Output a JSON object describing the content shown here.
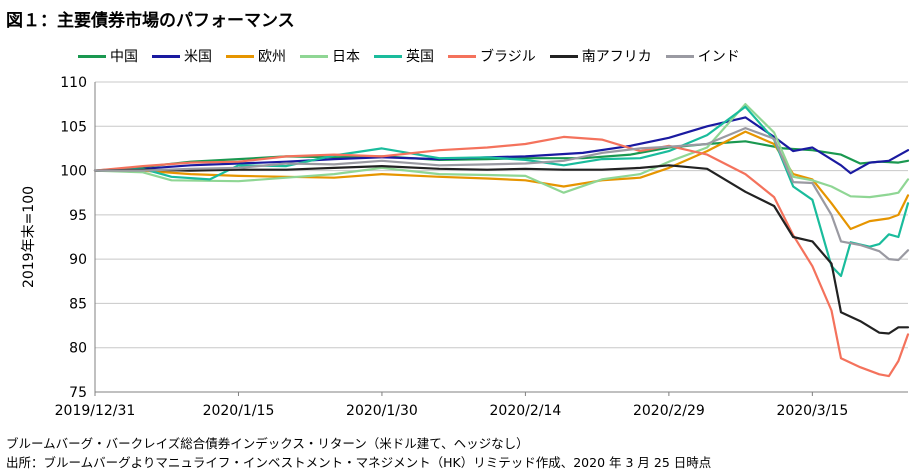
{
  "title": "図１：主要債券市場のパフォーマンス",
  "notes": {
    "line1": "ブルームバーグ・バークレイズ総合債券インデックス・リターン（米ドル建て、ヘッジなし）",
    "line2": "出所：ブルームバーグよりマニュライフ・インベストメント・マネジメント（HK）リミテッド作成、2020 年 3 月 25 日時点"
  },
  "chart_data": {
    "type": "line",
    "title": "図１：主要債券市場のパフォーマンス",
    "xlabel": "",
    "ylabel": "2019年末=100",
    "ylim": [
      75,
      110
    ],
    "yticks": [
      75,
      80,
      85,
      90,
      95,
      100,
      105,
      110
    ],
    "x_ticks": [
      "2019/12/31",
      "2020/1/15",
      "2020/1/30",
      "2020/2/14",
      "2020/2/29",
      "2020/3/15"
    ],
    "x_start": "2019-12-31",
    "x_end": "2020-03-25",
    "grid": "horizontal",
    "legend_position": "top",
    "series": [
      {
        "name": "中国",
        "color": "#1a9850",
        "points": [
          [
            "2019-12-31",
            100
          ],
          [
            "2020-01-05",
            100.4
          ],
          [
            "2020-01-10",
            101.0
          ],
          [
            "2020-01-15",
            101.3
          ],
          [
            "2020-01-20",
            101.6
          ],
          [
            "2020-01-25",
            101.5
          ],
          [
            "2020-01-30",
            101.6
          ],
          [
            "2020-02-05",
            101.2
          ],
          [
            "2020-02-10",
            101.3
          ],
          [
            "2020-02-14",
            101.4
          ],
          [
            "2020-02-20",
            101.4
          ],
          [
            "2020-02-25",
            101.8
          ],
          [
            "2020-02-29",
            102.6
          ],
          [
            "2020-03-04",
            103.0
          ],
          [
            "2020-03-08",
            103.3
          ],
          [
            "2020-03-12",
            102.5
          ],
          [
            "2020-03-15",
            102.3
          ],
          [
            "2020-03-18",
            101.8
          ],
          [
            "2020-03-20",
            100.8
          ],
          [
            "2020-03-22",
            101.0
          ],
          [
            "2020-03-24",
            100.9
          ],
          [
            "2020-03-25",
            101.1
          ]
        ]
      },
      {
        "name": "米国",
        "color": "#1a1aa0",
        "points": [
          [
            "2019-12-31",
            100
          ],
          [
            "2020-01-05",
            100.2
          ],
          [
            "2020-01-10",
            100.6
          ],
          [
            "2020-01-15",
            100.8
          ],
          [
            "2020-01-20",
            101.0
          ],
          [
            "2020-01-25",
            101.3
          ],
          [
            "2020-01-30",
            101.5
          ],
          [
            "2020-02-05",
            101.3
          ],
          [
            "2020-02-10",
            101.5
          ],
          [
            "2020-02-14",
            101.6
          ],
          [
            "2020-02-20",
            102.0
          ],
          [
            "2020-02-25",
            102.8
          ],
          [
            "2020-02-29",
            103.7
          ],
          [
            "2020-03-04",
            105.0
          ],
          [
            "2020-03-08",
            106.0
          ],
          [
            "2020-03-11",
            103.8
          ],
          [
            "2020-03-13",
            102.2
          ],
          [
            "2020-03-15",
            102.6
          ],
          [
            "2020-03-18",
            100.6
          ],
          [
            "2020-03-19",
            99.7
          ],
          [
            "2020-03-21",
            100.9
          ],
          [
            "2020-03-23",
            101.1
          ],
          [
            "2020-03-25",
            102.3
          ]
        ]
      },
      {
        "name": "欧州",
        "color": "#e69500",
        "points": [
          [
            "2019-12-31",
            100
          ],
          [
            "2020-01-05",
            100.0
          ],
          [
            "2020-01-10",
            99.6
          ],
          [
            "2020-01-15",
            99.4
          ],
          [
            "2020-01-20",
            99.3
          ],
          [
            "2020-01-25",
            99.2
          ],
          [
            "2020-01-30",
            99.6
          ],
          [
            "2020-02-05",
            99.3
          ],
          [
            "2020-02-10",
            99.1
          ],
          [
            "2020-02-14",
            98.9
          ],
          [
            "2020-02-18",
            98.2
          ],
          [
            "2020-02-22",
            98.9
          ],
          [
            "2020-02-26",
            99.2
          ],
          [
            "2020-02-29",
            100.3
          ],
          [
            "2020-03-04",
            102.2
          ],
          [
            "2020-03-08",
            104.4
          ],
          [
            "2020-03-11",
            103.0
          ],
          [
            "2020-03-13",
            99.6
          ],
          [
            "2020-03-15",
            99.0
          ],
          [
            "2020-03-17",
            96.3
          ],
          [
            "2020-03-19",
            93.4
          ],
          [
            "2020-03-21",
            94.3
          ],
          [
            "2020-03-23",
            94.6
          ],
          [
            "2020-03-24",
            95.0
          ],
          [
            "2020-03-25",
            97.2
          ]
        ]
      },
      {
        "name": "日本",
        "color": "#8fd694",
        "points": [
          [
            "2019-12-31",
            100
          ],
          [
            "2020-01-05",
            99.8
          ],
          [
            "2020-01-08",
            98.9
          ],
          [
            "2020-01-15",
            98.8
          ],
          [
            "2020-01-20",
            99.2
          ],
          [
            "2020-01-25",
            99.6
          ],
          [
            "2020-01-30",
            100.3
          ],
          [
            "2020-02-05",
            99.6
          ],
          [
            "2020-02-10",
            99.5
          ],
          [
            "2020-02-14",
            99.4
          ],
          [
            "2020-02-18",
            97.5
          ],
          [
            "2020-02-22",
            99.0
          ],
          [
            "2020-02-26",
            99.6
          ],
          [
            "2020-02-29",
            101.0
          ],
          [
            "2020-03-04",
            102.6
          ],
          [
            "2020-03-08",
            107.5
          ],
          [
            "2020-03-11",
            104.3
          ],
          [
            "2020-03-13",
            99.3
          ],
          [
            "2020-03-15",
            98.9
          ],
          [
            "2020-03-17",
            98.2
          ],
          [
            "2020-03-19",
            97.1
          ],
          [
            "2020-03-21",
            97.0
          ],
          [
            "2020-03-23",
            97.3
          ],
          [
            "2020-03-24",
            97.5
          ],
          [
            "2020-03-25",
            99.0
          ]
        ]
      },
      {
        "name": "英国",
        "color": "#1abc9c",
        "points": [
          [
            "2019-12-31",
            100
          ],
          [
            "2020-01-05",
            100.2
          ],
          [
            "2020-01-08",
            99.3
          ],
          [
            "2020-01-12",
            99.0
          ],
          [
            "2020-01-15",
            100.6
          ],
          [
            "2020-01-20",
            100.5
          ],
          [
            "2020-01-25",
            101.7
          ],
          [
            "2020-01-30",
            102.5
          ],
          [
            "2020-02-05",
            101.4
          ],
          [
            "2020-02-10",
            101.5
          ],
          [
            "2020-02-14",
            101.2
          ],
          [
            "2020-02-18",
            100.6
          ],
          [
            "2020-02-22",
            101.3
          ],
          [
            "2020-02-26",
            101.4
          ],
          [
            "2020-02-29",
            102.2
          ],
          [
            "2020-03-04",
            104.0
          ],
          [
            "2020-03-08",
            107.2
          ],
          [
            "2020-03-11",
            103.5
          ],
          [
            "2020-03-13",
            98.2
          ],
          [
            "2020-03-15",
            96.7
          ],
          [
            "2020-03-17",
            89.2
          ],
          [
            "2020-03-18",
            88.1
          ],
          [
            "2020-03-19",
            91.9
          ],
          [
            "2020-03-21",
            91.4
          ],
          [
            "2020-03-22",
            91.7
          ],
          [
            "2020-03-23",
            92.8
          ],
          [
            "2020-03-24",
            92.5
          ],
          [
            "2020-03-25",
            96.3
          ]
        ]
      },
      {
        "name": "ブラジル",
        "color": "#f4725c",
        "points": [
          [
            "2019-12-31",
            100
          ],
          [
            "2020-01-05",
            100.5
          ],
          [
            "2020-01-10",
            100.9
          ],
          [
            "2020-01-15",
            101.0
          ],
          [
            "2020-01-20",
            101.6
          ],
          [
            "2020-01-25",
            101.8
          ],
          [
            "2020-01-30",
            101.6
          ],
          [
            "2020-02-05",
            102.3
          ],
          [
            "2020-02-10",
            102.6
          ],
          [
            "2020-02-14",
            103.0
          ],
          [
            "2020-02-18",
            103.8
          ],
          [
            "2020-02-22",
            103.5
          ],
          [
            "2020-02-26",
            102.2
          ],
          [
            "2020-02-29",
            102.8
          ],
          [
            "2020-03-04",
            101.8
          ],
          [
            "2020-03-08",
            99.6
          ],
          [
            "2020-03-11",
            97.0
          ],
          [
            "2020-03-13",
            92.7
          ],
          [
            "2020-03-15",
            89.2
          ],
          [
            "2020-03-17",
            84.2
          ],
          [
            "2020-03-18",
            78.8
          ],
          [
            "2020-03-20",
            77.8
          ],
          [
            "2020-03-22",
            77.0
          ],
          [
            "2020-03-23",
            76.8
          ],
          [
            "2020-03-24",
            78.5
          ],
          [
            "2020-03-25",
            81.5
          ]
        ]
      },
      {
        "name": "南アフリカ",
        "color": "#222222",
        "points": [
          [
            "2019-12-31",
            100
          ],
          [
            "2020-01-05",
            100.1
          ],
          [
            "2020-01-10",
            100.0
          ],
          [
            "2020-01-15",
            100.1
          ],
          [
            "2020-01-20",
            100.1
          ],
          [
            "2020-01-25",
            100.3
          ],
          [
            "2020-01-30",
            100.5
          ],
          [
            "2020-02-05",
            100.2
          ],
          [
            "2020-02-10",
            100.1
          ],
          [
            "2020-02-14",
            100.2
          ],
          [
            "2020-02-18",
            100.1
          ],
          [
            "2020-02-22",
            100.1
          ],
          [
            "2020-02-26",
            100.3
          ],
          [
            "2020-02-29",
            100.6
          ],
          [
            "2020-03-04",
            100.2
          ],
          [
            "2020-03-08",
            97.6
          ],
          [
            "2020-03-11",
            96.0
          ],
          [
            "2020-03-13",
            92.5
          ],
          [
            "2020-03-15",
            92.0
          ],
          [
            "2020-03-17",
            89.5
          ],
          [
            "2020-03-18",
            84.0
          ],
          [
            "2020-03-20",
            83.0
          ],
          [
            "2020-03-22",
            81.7
          ],
          [
            "2020-03-23",
            81.6
          ],
          [
            "2020-03-24",
            82.3
          ],
          [
            "2020-03-25",
            82.3
          ]
        ]
      },
      {
        "name": "インド",
        "color": "#9a9aa2",
        "points": [
          [
            "2019-12-31",
            100
          ],
          [
            "2020-01-05",
            100.0
          ],
          [
            "2020-01-10",
            100.2
          ],
          [
            "2020-01-15",
            100.3
          ],
          [
            "2020-01-20",
            100.8
          ],
          [
            "2020-01-25",
            100.7
          ],
          [
            "2020-01-30",
            101.1
          ],
          [
            "2020-02-05",
            100.6
          ],
          [
            "2020-02-10",
            100.7
          ],
          [
            "2020-02-14",
            100.8
          ],
          [
            "2020-02-18",
            101.1
          ],
          [
            "2020-02-22",
            102.0
          ],
          [
            "2020-02-26",
            102.5
          ],
          [
            "2020-02-29",
            102.7
          ],
          [
            "2020-03-04",
            103.0
          ],
          [
            "2020-03-08",
            104.8
          ],
          [
            "2020-03-11",
            103.6
          ],
          [
            "2020-03-13",
            98.7
          ],
          [
            "2020-03-15",
            98.6
          ],
          [
            "2020-03-17",
            95.0
          ],
          [
            "2020-03-18",
            92.0
          ],
          [
            "2020-03-20",
            91.6
          ],
          [
            "2020-03-22",
            90.9
          ],
          [
            "2020-03-23",
            90.0
          ],
          [
            "2020-03-24",
            89.9
          ],
          [
            "2020-03-25",
            91.0
          ]
        ]
      }
    ]
  }
}
